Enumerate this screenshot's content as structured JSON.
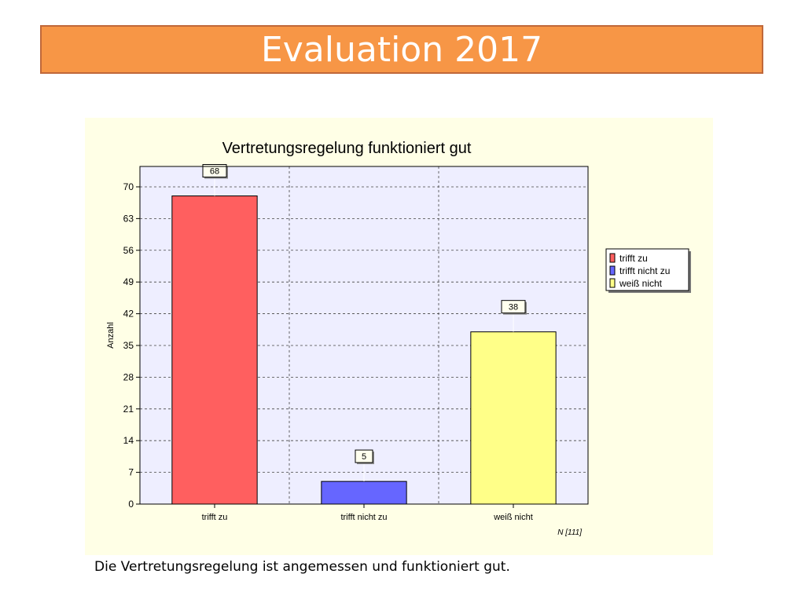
{
  "slide": {
    "title": "Evaluation 2017",
    "caption": "Die Vertretungsregelung ist angemessen und funktioniert gut."
  },
  "chart_data": {
    "type": "bar",
    "title": "Vertretungsregelung funktioniert gut",
    "xlabel": "",
    "ylabel": "Anzahl",
    "categories": [
      "trifft zu",
      "trifft nicht zu",
      "weiß nicht"
    ],
    "values": [
      68,
      5,
      38
    ],
    "colors": [
      "#ff5f5f",
      "#6666ff",
      "#ffff88"
    ],
    "ylim": [
      0,
      74.5
    ],
    "yticks": [
      0,
      7,
      14,
      21,
      28,
      35,
      42,
      49,
      56,
      63,
      70
    ],
    "legend": {
      "placement": "right",
      "entries": [
        "trifft zu",
        "trifft nicht zu",
        "weiß nicht"
      ]
    },
    "grid": true,
    "footnote": "N [111]"
  }
}
